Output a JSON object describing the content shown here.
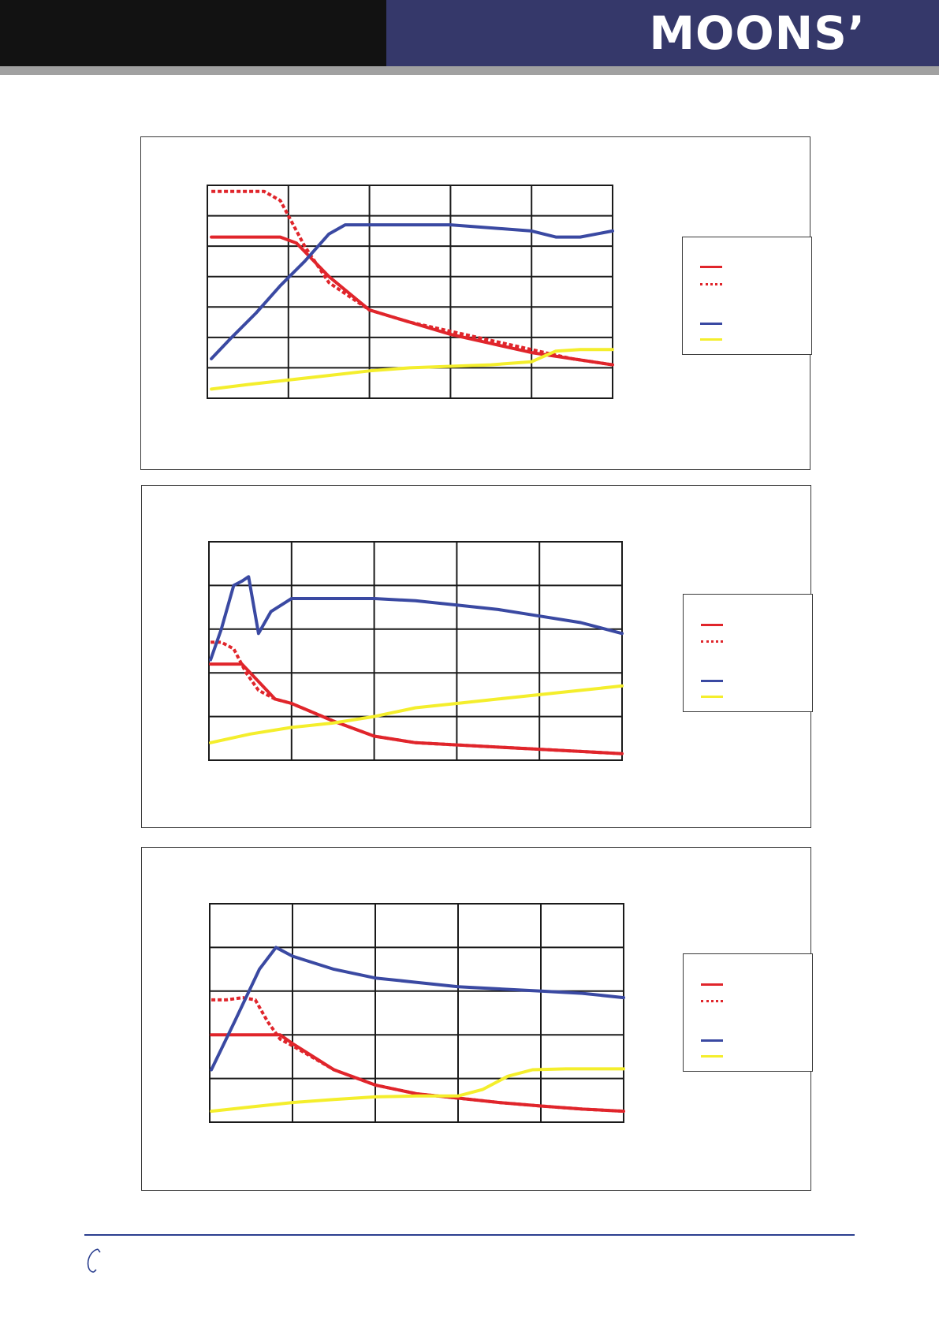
{
  "header": {
    "logo_text": "MOONS’",
    "colors": {
      "left_bar": "#121212",
      "right_bar": "#35386a",
      "strip": "#a1a1a1"
    }
  },
  "series_colors": {
    "red_solid": "#e0252b",
    "red_dashed": "#e0252b",
    "blue": "#3a49a2",
    "yellow": "#f4ee2c"
  },
  "chart_data": [
    {
      "type": "line",
      "grid": true,
      "legend_placement": "right",
      "x_divisions": 5,
      "y_divisions": 7,
      "xlim": [
        0,
        5
      ],
      "ylim": [
        0,
        7
      ],
      "series": [
        {
          "key": "red_solid",
          "style": "solid",
          "x": [
            0.05,
            0.3,
            0.6,
            0.9,
            1.1,
            1.5,
            2.0,
            2.5,
            3.0,
            3.5,
            4.0,
            4.5,
            5.0
          ],
          "y": [
            5.3,
            5.3,
            5.3,
            5.3,
            5.1,
            4.0,
            2.9,
            2.5,
            2.1,
            1.8,
            1.5,
            1.3,
            1.1
          ]
        },
        {
          "key": "red_dashed",
          "style": "dashed",
          "x": [
            0.05,
            0.2,
            0.5,
            0.7,
            0.9,
            1.2,
            1.5,
            2.0,
            2.5,
            3.0,
            3.5,
            4.0,
            4.5,
            5.0
          ],
          "y": [
            6.8,
            6.8,
            6.8,
            6.8,
            6.5,
            5.0,
            3.8,
            2.9,
            2.5,
            2.2,
            1.9,
            1.6,
            1.3,
            1.1
          ]
        },
        {
          "key": "blue",
          "style": "solid",
          "x": [
            0.05,
            0.3,
            0.6,
            0.9,
            1.2,
            1.5,
            1.7,
            2.0,
            2.5,
            3.0,
            3.5,
            4.0,
            4.3,
            4.6,
            5.0
          ],
          "y": [
            1.3,
            2.0,
            2.8,
            3.7,
            4.5,
            5.4,
            5.7,
            5.7,
            5.7,
            5.7,
            5.6,
            5.5,
            5.3,
            5.3,
            5.5
          ]
        },
        {
          "key": "yellow",
          "style": "solid",
          "x": [
            0.05,
            0.5,
            1.0,
            1.5,
            2.0,
            2.5,
            3.0,
            3.5,
            4.0,
            4.3,
            4.6,
            5.0
          ],
          "y": [
            0.3,
            0.45,
            0.6,
            0.75,
            0.9,
            1.0,
            1.05,
            1.1,
            1.2,
            1.55,
            1.6,
            1.6
          ]
        }
      ]
    },
    {
      "type": "line",
      "grid": true,
      "legend_placement": "right",
      "x_divisions": 5,
      "y_divisions": 5,
      "xlim": [
        0,
        5
      ],
      "ylim": [
        0,
        5
      ],
      "series": [
        {
          "key": "red_solid",
          "style": "solid",
          "x": [
            0.02,
            0.2,
            0.4,
            0.6,
            0.8,
            1.0,
            1.5,
            2.0,
            2.5,
            3.0,
            3.5,
            4.0,
            4.5,
            5.0
          ],
          "y": [
            2.2,
            2.2,
            2.2,
            1.8,
            1.4,
            1.3,
            0.9,
            0.55,
            0.4,
            0.35,
            0.3,
            0.25,
            0.2,
            0.15
          ]
        },
        {
          "key": "red_dashed",
          "style": "dashed",
          "x": [
            0.02,
            0.15,
            0.3,
            0.45,
            0.6,
            0.8,
            1.0,
            1.5,
            2.0,
            2.5,
            3.0,
            3.5,
            4.0,
            4.5,
            5.0
          ],
          "y": [
            2.7,
            2.7,
            2.55,
            2.0,
            1.6,
            1.4,
            1.3,
            0.9,
            0.55,
            0.4,
            0.35,
            0.3,
            0.25,
            0.2,
            0.15
          ]
        },
        {
          "key": "blue",
          "style": "solid",
          "x": [
            0.02,
            0.15,
            0.3,
            0.4,
            0.48,
            0.6,
            0.75,
            1.0,
            1.5,
            2.0,
            2.5,
            3.0,
            3.5,
            4.0,
            4.5,
            5.0
          ],
          "y": [
            2.3,
            3.0,
            4.0,
            4.1,
            4.2,
            2.9,
            3.4,
            3.7,
            3.7,
            3.7,
            3.65,
            3.55,
            3.45,
            3.3,
            3.15,
            2.9
          ]
        },
        {
          "key": "yellow",
          "style": "solid",
          "x": [
            0.02,
            0.5,
            1.0,
            1.5,
            2.0,
            2.5,
            3.0,
            3.5,
            4.0,
            4.5,
            5.0
          ],
          "y": [
            0.4,
            0.6,
            0.75,
            0.85,
            1.0,
            1.2,
            1.3,
            1.4,
            1.5,
            1.6,
            1.7
          ]
        }
      ]
    },
    {
      "type": "line",
      "grid": true,
      "legend_placement": "right",
      "x_divisions": 5,
      "y_divisions": 5,
      "xlim": [
        0,
        5
      ],
      "ylim": [
        0,
        5
      ],
      "series": [
        {
          "key": "red_solid",
          "style": "solid",
          "x": [
            0.02,
            0.3,
            0.6,
            0.85,
            1.0,
            1.5,
            2.0,
            2.5,
            3.0,
            3.5,
            4.0,
            4.5,
            5.0
          ],
          "y": [
            2.0,
            2.0,
            2.0,
            2.0,
            1.8,
            1.2,
            0.85,
            0.65,
            0.55,
            0.45,
            0.37,
            0.3,
            0.25
          ]
        },
        {
          "key": "red_dashed",
          "style": "dashed",
          "x": [
            0.02,
            0.2,
            0.4,
            0.55,
            0.7,
            0.85,
            1.0,
            1.5,
            2.0,
            2.5,
            3.0,
            3.5,
            4.0,
            4.5,
            5.0
          ],
          "y": [
            2.8,
            2.8,
            2.85,
            2.8,
            2.3,
            1.9,
            1.75,
            1.2,
            0.85,
            0.65,
            0.55,
            0.45,
            0.37,
            0.3,
            0.25
          ]
        },
        {
          "key": "blue",
          "style": "solid",
          "x": [
            0.02,
            0.3,
            0.6,
            0.8,
            0.85,
            1.0,
            1.5,
            2.0,
            2.5,
            3.0,
            3.5,
            4.0,
            4.5,
            5.0
          ],
          "y": [
            1.2,
            2.3,
            3.5,
            4.0,
            3.95,
            3.8,
            3.5,
            3.3,
            3.2,
            3.1,
            3.05,
            3.0,
            2.95,
            2.85
          ]
        },
        {
          "key": "yellow",
          "style": "solid",
          "x": [
            0.02,
            0.5,
            1.0,
            1.5,
            2.0,
            2.5,
            3.0,
            3.3,
            3.6,
            3.9,
            4.3,
            5.0
          ],
          "y": [
            0.25,
            0.35,
            0.45,
            0.52,
            0.58,
            0.6,
            0.6,
            0.75,
            1.05,
            1.2,
            1.22,
            1.22
          ]
        }
      ]
    }
  ]
}
